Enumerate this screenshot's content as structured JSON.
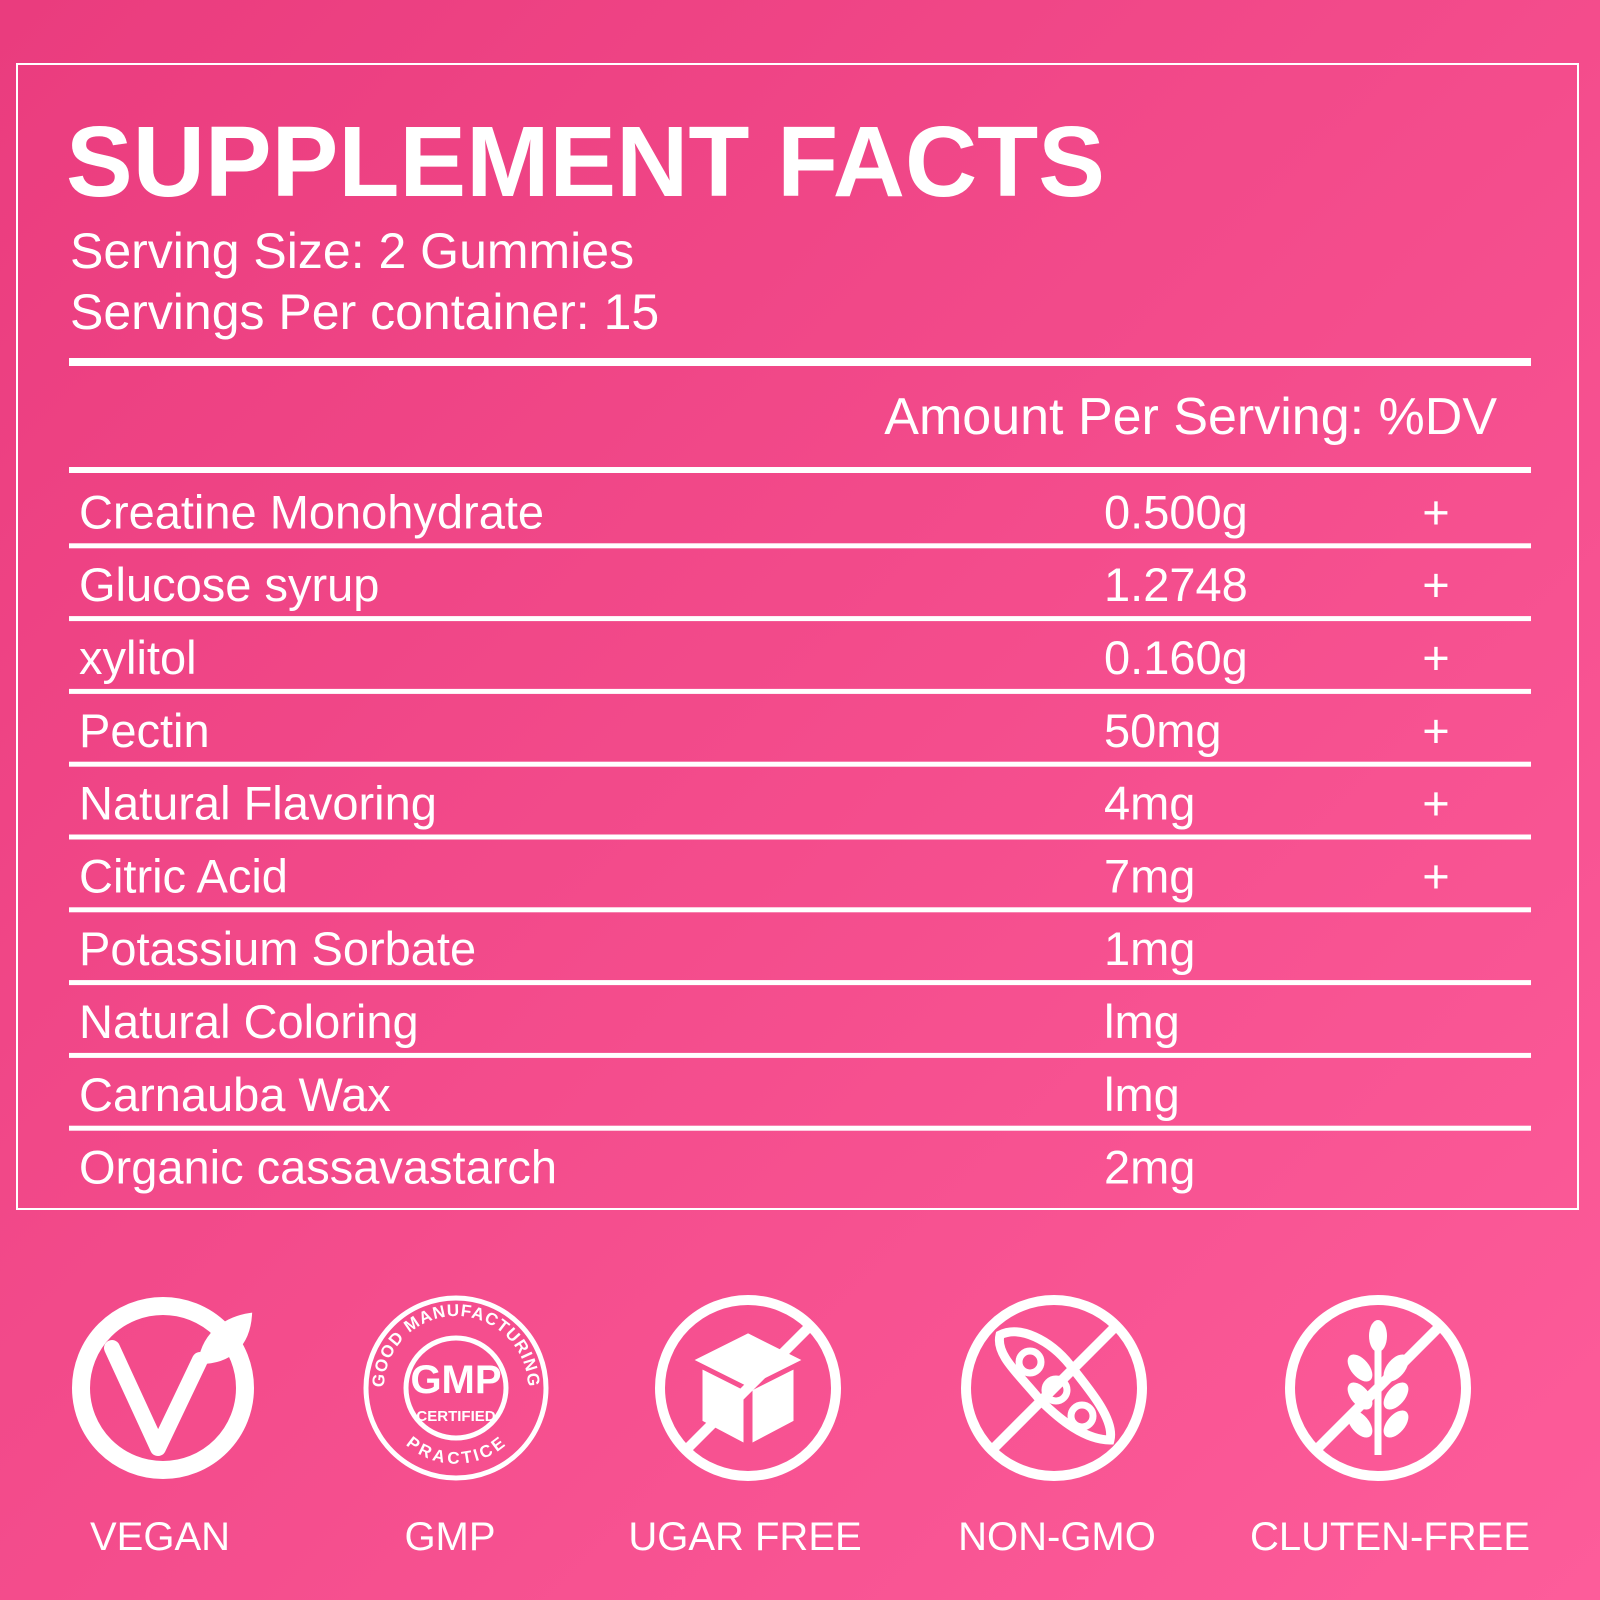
{
  "header": {
    "title": "SUPPLEMENT FACTS",
    "serving_size": "Serving Size: 2 Gummies",
    "servings_per_container": "Servings Per container: 15"
  },
  "table": {
    "header": "Amount Per Serving: %DV",
    "rows": [
      {
        "name": "Creatine Monohydrate",
        "amount": "0.500g",
        "dv": "+"
      },
      {
        "name": "Glucose syrup",
        "amount": "1.2748",
        "dv": "+"
      },
      {
        "name": "xylitol",
        "amount": "0.160g",
        "dv": "+"
      },
      {
        "name": "Pectin",
        "amount": "50mg",
        "dv": "+"
      },
      {
        "name": "Natural Flavoring",
        "amount": "4mg",
        "dv": "+"
      },
      {
        "name": "Citric Acid",
        "amount": "7mg",
        "dv": "+"
      },
      {
        "name": "Potassium Sorbate",
        "amount": "1mg"
      },
      {
        "name": "Natural Coloring",
        "amount": "lmg"
      },
      {
        "name": "Carnauba Wax",
        "amount": "lmg"
      },
      {
        "name": "Organic cassavastarch",
        "amount": "2mg"
      }
    ]
  },
  "badges": [
    {
      "label": "VEGAN"
    },
    {
      "label": "GMP",
      "seal_top": "GOOD MANUFACTURING",
      "seal_center": "GMP",
      "seal_sub": "CERTIFIED",
      "seal_bottom": "PRACTICE"
    },
    {
      "label": "UGAR FREE"
    },
    {
      "label": "NON-GMO"
    },
    {
      "label": "CLUTEN-FREE"
    }
  ]
}
